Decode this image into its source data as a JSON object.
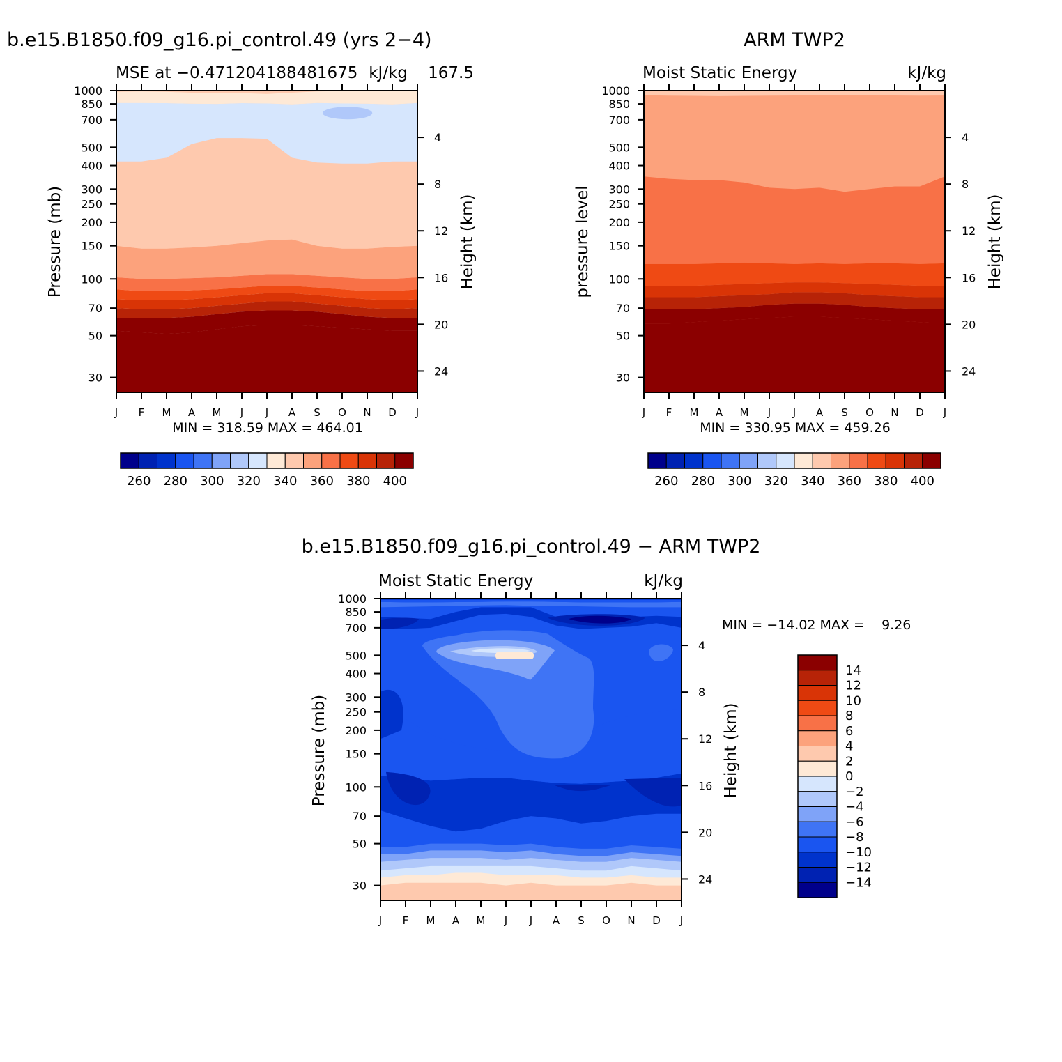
{
  "months": [
    "J",
    "F",
    "M",
    "A",
    "M",
    "J",
    "J",
    "A",
    "S",
    "O",
    "N",
    "D",
    "J"
  ],
  "pressure_ticks": [
    "30",
    "50",
    "70",
    "100",
    "150",
    "200",
    "250",
    "300",
    "400",
    "500",
    "700",
    "850",
    "1000"
  ],
  "height_ticks": [
    "24",
    "20",
    "16",
    "12",
    "8",
    "4"
  ],
  "colors": {
    "seq": [
      "#00008b",
      "#0022b2",
      "#0033cc",
      "#1a55f0",
      "#3f74f5",
      "#7fa3f8",
      "#b0c8fa",
      "#d6e6fd",
      "#fee9d6",
      "#fec9ae",
      "#fca27c",
      "#f87147",
      "#ef4a14",
      "#d93406",
      "#b72307",
      "#8b0000"
    ],
    "diff": [
      "#8b0000",
      "#b72307",
      "#d93406",
      "#ef4a14",
      "#f87147",
      "#fca27c",
      "#fec9ae",
      "#fee9d6",
      "#d6e6fd",
      "#b0c8fa",
      "#7fa3f8",
      "#3f74f5",
      "#1a55f0",
      "#0033cc",
      "#0022b2",
      "#00008b"
    ]
  },
  "panels": {
    "model": {
      "title": "b.e15.B1850.f09_g16.pi_control.49 (yrs 2−4)",
      "left_sub": "MSE at −0.471204188481675",
      "right_sub": "kJ/kg",
      "extra_sub": "167.5",
      "ylabel": "Pressure (mb)",
      "ylabel_right": "Height (km)",
      "minmax": "MIN = 318.59 MAX = 464.01"
    },
    "obs": {
      "title": "ARM TWP2",
      "left_sub": "Moist Static Energy",
      "right_sub": "kJ/kg",
      "ylabel": "pressure level",
      "ylabel_right": "Height (km)",
      "minmax": "MIN = 330.95 MAX = 459.26"
    },
    "diff": {
      "title": "b.e15.B1850.f09_g16.pi_control.49 − ARM TWP2",
      "left_sub": "Moist Static Energy",
      "right_sub": "kJ/kg",
      "ylabel": "Pressure (mb)",
      "ylabel_right": "Height (km)",
      "minmax": "MIN = −14.02 MAX =    9.26"
    }
  },
  "colorbar_seq_labels": [
    "260",
    "280",
    "300",
    "320",
    "340",
    "360",
    "380",
    "400"
  ],
  "colorbar_diff_labels": [
    "14",
    "12",
    "10",
    "8",
    "6",
    "4",
    "2",
    "0",
    "−2",
    "−4",
    "−6",
    "−8",
    "−10",
    "−12",
    "−14"
  ],
  "chart_data": [
    {
      "type": "heatmap",
      "name": "model",
      "x": [
        "J",
        "F",
        "M",
        "A",
        "M",
        "J",
        "J",
        "A",
        "S",
        "O",
        "N",
        "D",
        "J"
      ],
      "y_pressure": [
        1000,
        850,
        700,
        500,
        400,
        300,
        250,
        200,
        150,
        100,
        70,
        50,
        30
      ],
      "levels": [
        250,
        260,
        270,
        280,
        290,
        300,
        310,
        320,
        330,
        340,
        350,
        360,
        370,
        380,
        390,
        400
      ],
      "boundaries_p": {
        "330": [
          860,
          855,
          858,
          852,
          850,
          858,
          855,
          845,
          860,
          855,
          852,
          845,
          860
        ],
        "340": [
          150,
          145,
          145,
          147,
          150,
          155,
          160,
          162,
          150,
          145,
          145,
          148,
          150
        ],
        "350": [
          102,
          100,
          100,
          101,
          102,
          104,
          106,
          106,
          104,
          102,
          100,
          100,
          102
        ],
        "360": [
          88,
          86,
          86,
          87,
          88,
          90,
          92,
          92,
          90,
          88,
          86,
          86,
          88
        ],
        "370": [
          78,
          77,
          77,
          78,
          80,
          82,
          84,
          84,
          82,
          80,
          78,
          77,
          78
        ],
        "380": [
          70,
          69,
          69,
          70,
          72,
          74,
          76,
          76,
          74,
          72,
          70,
          69,
          70
        ],
        "390": [
          62,
          62,
          62,
          63,
          65,
          67,
          68,
          68,
          67,
          65,
          63,
          62,
          62
        ],
        "400": [
          53,
          52,
          51,
          52,
          54,
          56,
          57,
          57,
          56,
          55,
          54,
          53,
          53
        ]
      },
      "minus_region_p": {
        "top": [
          420,
          420,
          440,
          520,
          560,
          560,
          555,
          440,
          415,
          410,
          410,
          420,
          420
        ],
        "bottom": [
          860,
          860,
          858,
          852,
          850,
          858,
          855,
          845,
          860,
          855,
          852,
          845,
          860
        ]
      },
      "ylabel": "Pressure (mb)",
      "y2label": "Height (km)",
      "ylim": [
        1000,
        30
      ]
    },
    {
      "type": "heatmap",
      "name": "obs",
      "x": [
        "J",
        "F",
        "M",
        "A",
        "M",
        "J",
        "J",
        "A",
        "S",
        "O",
        "N",
        "D",
        "J"
      ],
      "y_pressure": [
        1000,
        850,
        700,
        500,
        400,
        300,
        250,
        200,
        150,
        100,
        70,
        50,
        30
      ],
      "levels": [
        250,
        260,
        270,
        280,
        290,
        300,
        310,
        320,
        330,
        340,
        350,
        360,
        370,
        380,
        390,
        400
      ],
      "boundaries_p": {
        "350": [
          350,
          340,
          335,
          335,
          325,
          305,
          300,
          305,
          290,
          300,
          310,
          310,
          350
        ],
        "360": [
          120,
          120,
          120,
          121,
          122,
          121,
          120,
          121,
          120,
          121,
          121,
          120,
          121
        ],
        "370": [
          92,
          92,
          92,
          93,
          94,
          95,
          96,
          96,
          95,
          94,
          93,
          92,
          92
        ],
        "380": [
          80,
          80,
          80,
          81,
          82,
          83,
          85,
          85,
          84,
          82,
          81,
          80,
          80
        ],
        "390": [
          69,
          69,
          69,
          70,
          71,
          73,
          74,
          74,
          73,
          71,
          70,
          69,
          69
        ],
        "400": [
          58,
          58,
          59,
          60,
          61,
          62,
          63,
          63,
          62,
          61,
          60,
          59,
          58
        ]
      },
      "ylabel": "pressure level",
      "y2label": "Height (km)",
      "ylim": [
        1000,
        30
      ]
    },
    {
      "type": "heatmap",
      "name": "diff",
      "x": [
        "J",
        "F",
        "M",
        "A",
        "M",
        "J",
        "J",
        "A",
        "S",
        "O",
        "N",
        "D",
        "J"
      ],
      "y_pressure": [
        1000,
        850,
        700,
        500,
        400,
        300,
        250,
        200,
        150,
        100,
        70,
        50,
        30
      ],
      "levels": [
        -14,
        -12,
        -10,
        -8,
        -6,
        -4,
        -2,
        0,
        2,
        4,
        6,
        8,
        10,
        12,
        14
      ],
      "ylabel": "Pressure (mb)",
      "y2label": "Height (km)",
      "ylim": [
        1000,
        30
      ]
    }
  ]
}
